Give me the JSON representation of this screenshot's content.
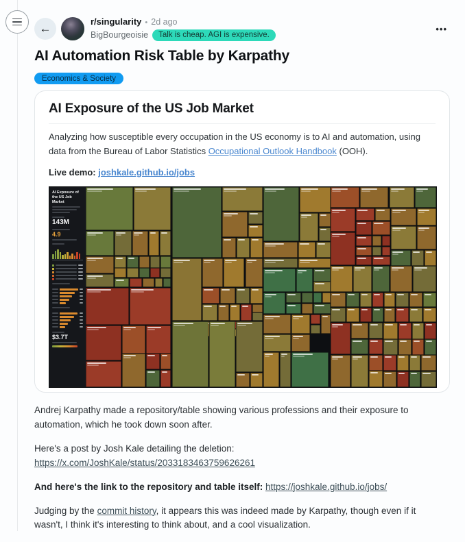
{
  "icons": {
    "back": "←",
    "overflow": "•••"
  },
  "header": {
    "community": "r/singularity",
    "separator": "•",
    "time_ago": "2d ago",
    "author": "BigBourgeoisie",
    "author_flair": "Talk is cheap. AGI is expensive."
  },
  "post": {
    "title": "AI Automation Risk Table by Karpathy",
    "flair": "Economics & Society"
  },
  "card": {
    "title": "AI Exposure of the US Job Market",
    "description_before": "Analyzing how susceptible every occupation in the US economy is to AI and automation, using data from the Bureau of Labor Statistics ",
    "description_link": "Occupational Outlook Handbook",
    "description_after": " (OOH).",
    "live_demo_label": "Live demo:",
    "live_demo_link": "joshkale.github.io/jobs"
  },
  "treemap": {
    "panel": {
      "title": "AI Exposure of the US Job Market",
      "total_jobs_value": "143M",
      "score_value": "4.9",
      "wages_value": "$3.7T"
    },
    "histogram": [
      35,
      62,
      78,
      55,
      30,
      38,
      52,
      28,
      40,
      24,
      55,
      42
    ],
    "histogram_colors": [
      "#7c9a40",
      "#7c9a40",
      "#8fa13d",
      "#9aa83c",
      "#b7af39",
      "#c2b23a",
      "#cfa232",
      "#d98a2e",
      "#d98a2e",
      "#cc6429",
      "#c44227",
      "#c44227"
    ],
    "legend_chips": [
      "#7c9a40",
      "#c2b23a",
      "#d98a2e",
      "#cc6429",
      "#c44227"
    ],
    "hbars1": [
      62,
      48,
      40,
      30,
      20
    ],
    "hbars2": [
      58,
      46,
      36,
      26,
      18
    ],
    "colors": {
      "g1": "#68793b",
      "g2": "#4e663a",
      "g3": "#3f7046",
      "g4": "#6e7438",
      "g5": "#7a7c3a",
      "o1": "#8b7a38",
      "o2": "#746c38",
      "o3": "#8a7434",
      "b1": "#8f682d",
      "b2": "#a07a2e",
      "r1": "#8e3122",
      "r2": "#9b3b28",
      "r3": "#9c4f28"
    },
    "tiles": [
      [
        0,
        0,
        13.5,
        21.7,
        "g1"
      ],
      [
        13.7,
        0,
        10.5,
        21.7,
        "o1"
      ],
      [
        0,
        22,
        8.1,
        12.2,
        "g1"
      ],
      [
        8.3,
        22,
        4.9,
        12.2,
        "o2"
      ],
      [
        13.4,
        22,
        4.4,
        12.2,
        "b1"
      ],
      [
        18,
        22,
        3,
        12.2,
        "b2"
      ],
      [
        21.2,
        22,
        3,
        12.2,
        "o1"
      ],
      [
        0,
        34.5,
        8.1,
        8.8,
        "b1"
      ],
      [
        0,
        43.6,
        8.1,
        6.6,
        "o2"
      ],
      [
        8.3,
        34.5,
        3.3,
        5.8,
        "o1"
      ],
      [
        11.8,
        34.5,
        3.2,
        5.8,
        "g2"
      ],
      [
        15.2,
        34.5,
        3,
        5.8,
        "b1"
      ],
      [
        18.4,
        34.5,
        2.8,
        5.8,
        "o2"
      ],
      [
        21.4,
        34.5,
        2.8,
        5.8,
        "g1"
      ],
      [
        8.3,
        40.6,
        3.3,
        4.8,
        "b2"
      ],
      [
        11.8,
        40.6,
        3.2,
        4.8,
        "o1"
      ],
      [
        15.2,
        40.6,
        3,
        4.8,
        "g2"
      ],
      [
        18.4,
        40.6,
        2.8,
        4.8,
        "r1"
      ],
      [
        21.4,
        40.6,
        2.8,
        4.8,
        "o2"
      ],
      [
        8.3,
        45.7,
        4,
        4.5,
        "g1"
      ],
      [
        12.5,
        45.7,
        3.6,
        4.5,
        "r2"
      ],
      [
        16.3,
        45.7,
        3.2,
        4.5,
        "b1"
      ],
      [
        19.7,
        45.7,
        2.2,
        4.5,
        "o1"
      ],
      [
        22.1,
        45.7,
        2.1,
        4.5,
        "g2"
      ],
      [
        0,
        50.5,
        12.4,
        18.5,
        "r1"
      ],
      [
        12.6,
        50.5,
        11.6,
        18.5,
        "r2"
      ],
      [
        0,
        69.3,
        10.1,
        17.4,
        "r1"
      ],
      [
        0,
        87,
        10.1,
        13,
        "r2"
      ],
      [
        10.3,
        69.3,
        6.7,
        13.8,
        "r3"
      ],
      [
        17.2,
        69.3,
        7,
        13.8,
        "r2"
      ],
      [
        10.3,
        83.4,
        6.7,
        16.6,
        "b1"
      ],
      [
        17.2,
        83.4,
        4,
        7.8,
        "r1"
      ],
      [
        21.4,
        83.4,
        2.8,
        7.8,
        "r3"
      ],
      [
        17.2,
        91.5,
        4,
        8.5,
        "g2"
      ],
      [
        21.4,
        91.5,
        2.8,
        8.5,
        "r2"
      ],
      [
        24.6,
        0,
        14.2,
        35.2,
        "g2"
      ],
      [
        39,
        0,
        11.5,
        11.9,
        "o1"
      ],
      [
        39,
        12.2,
        7.2,
        13,
        "b1"
      ],
      [
        46.4,
        12.2,
        4.1,
        6.3,
        "o2"
      ],
      [
        46.4,
        18.7,
        4.1,
        6.5,
        "b2"
      ],
      [
        39,
        25.5,
        3.9,
        9.7,
        "b1"
      ],
      [
        43.1,
        25.5,
        3.6,
        9.7,
        "o1"
      ],
      [
        46.9,
        25.5,
        3.6,
        9.7,
        "b2"
      ],
      [
        24.6,
        35.5,
        8.5,
        31.2,
        "o3"
      ],
      [
        33.3,
        35.5,
        5.8,
        14.7,
        "b1"
      ],
      [
        39.3,
        35.5,
        6,
        14.7,
        "b2"
      ],
      [
        45.5,
        35.5,
        5,
        14.7,
        "b1"
      ],
      [
        33.3,
        50.5,
        4.8,
        7.8,
        "r3"
      ],
      [
        38.3,
        50.5,
        4.4,
        7.8,
        "b1"
      ],
      [
        42.9,
        50.5,
        3.8,
        7.8,
        "o2"
      ],
      [
        46.9,
        50.5,
        3.6,
        7.8,
        "b2"
      ],
      [
        33.3,
        58.6,
        4.2,
        8.2,
        "o1"
      ],
      [
        37.7,
        58.6,
        3.2,
        8.2,
        "b1"
      ],
      [
        41.1,
        58.6,
        3,
        8.2,
        "b2"
      ],
      [
        44.3,
        58.6,
        3,
        8.2,
        "r2"
      ],
      [
        47.5,
        58.6,
        3,
        4,
        "b1"
      ],
      [
        47.5,
        62.8,
        3,
        4,
        "o2"
      ],
      [
        33.3,
        67.1,
        4.2,
        7.6,
        "b2"
      ],
      [
        37.7,
        67.1,
        3.7,
        7.6,
        "b1"
      ],
      [
        41.6,
        67.1,
        3.1,
        3.7,
        "r1"
      ],
      [
        41.6,
        71,
        3.1,
        3.7,
        "o1"
      ],
      [
        44.9,
        67.1,
        2.7,
        7.6,
        "b2"
      ],
      [
        47.8,
        67.1,
        2.7,
        7.6,
        "b1"
      ],
      [
        24.6,
        67.1,
        10.5,
        32.9,
        "g4"
      ],
      [
        35.3,
        67.1,
        7.4,
        32.9,
        "g5"
      ],
      [
        42.9,
        67.1,
        7.6,
        25.5,
        "o2"
      ],
      [
        42.9,
        92.9,
        3.8,
        7.1,
        "b1"
      ],
      [
        46.9,
        92.9,
        3.6,
        7.1,
        "b2"
      ],
      [
        50.7,
        0,
        10.2,
        27.2,
        "g2"
      ],
      [
        61.1,
        0,
        8.7,
        12.6,
        "b2"
      ],
      [
        61.1,
        12.9,
        5.2,
        14.3,
        "o1"
      ],
      [
        66.5,
        12.9,
        3.3,
        6.9,
        "b1"
      ],
      [
        66.5,
        20.1,
        3.3,
        7.1,
        "o2"
      ],
      [
        50.7,
        27.5,
        9.8,
        7.7,
        "b1"
      ],
      [
        60.7,
        27.5,
        4.9,
        7.7,
        "b2"
      ],
      [
        65.8,
        27.5,
        4,
        7.7,
        "o1"
      ],
      [
        50.7,
        35.5,
        9.8,
        5,
        "o2"
      ],
      [
        60.7,
        35.5,
        9.1,
        5,
        "b2"
      ],
      [
        50.7,
        40.8,
        9.1,
        11.7,
        "g3"
      ],
      [
        60,
        40.8,
        4.8,
        11.7,
        "g3"
      ],
      [
        50.7,
        52.8,
        6.2,
        10.6,
        "g3"
      ],
      [
        57.1,
        52.8,
        4.4,
        5.2,
        "g2"
      ],
      [
        57.1,
        58.2,
        4.4,
        5.2,
        "g3"
      ],
      [
        61.7,
        52.8,
        3.1,
        5.2,
        "g2"
      ],
      [
        61.7,
        58.2,
        3.1,
        5.2,
        "b1"
      ],
      [
        65,
        40.8,
        4.8,
        6.4,
        "g2"
      ],
      [
        65,
        47.4,
        4.8,
        5.1,
        "o1"
      ],
      [
        65,
        52.8,
        2.3,
        5.2,
        "g3"
      ],
      [
        67.5,
        52.8,
        2.3,
        5.2,
        "b2"
      ],
      [
        65,
        58.2,
        4.8,
        5.2,
        "g2"
      ],
      [
        50.7,
        63.7,
        7.8,
        9.7,
        "b1"
      ],
      [
        58.7,
        63.7,
        5.3,
        9.7,
        "b2"
      ],
      [
        64.2,
        63.7,
        2.8,
        4.8,
        "r2"
      ],
      [
        64.2,
        68.7,
        2.8,
        4.7,
        "o2"
      ],
      [
        67.2,
        63.7,
        2.6,
        9.7,
        "b1"
      ],
      [
        50.7,
        73.7,
        7.8,
        8.6,
        "o1"
      ],
      [
        58.7,
        73.7,
        5.3,
        8.6,
        "b1"
      ],
      [
        50.7,
        82.6,
        4.4,
        17.4,
        "b2"
      ],
      [
        55.3,
        82.6,
        3.2,
        17.4,
        "o2"
      ],
      [
        58.7,
        82.6,
        10.5,
        17.4,
        "g3"
      ],
      [
        69.8,
        0,
        8.2,
        10.3,
        "r3"
      ],
      [
        78.2,
        0,
        8.2,
        10.3,
        "b1"
      ],
      [
        86.6,
        0,
        7.2,
        10.3,
        "o1"
      ],
      [
        94,
        0,
        6,
        10.3,
        "g2"
      ],
      [
        69.8,
        10.6,
        7.2,
        11.7,
        "r2"
      ],
      [
        69.8,
        22.6,
        7.2,
        16.6,
        "r1"
      ],
      [
        77.2,
        10.6,
        5.2,
        6.3,
        "r2"
      ],
      [
        82.6,
        10.6,
        4.2,
        6.3,
        "b1"
      ],
      [
        77.2,
        17.2,
        4.4,
        6.7,
        "r1"
      ],
      [
        81.8,
        17.2,
        5,
        6.7,
        "r3"
      ],
      [
        77.2,
        24.2,
        4.4,
        5.2,
        "r2"
      ],
      [
        81.8,
        24.2,
        2.6,
        5.2,
        "b1"
      ],
      [
        84.6,
        24.2,
        2.2,
        5.2,
        "r1"
      ],
      [
        77.2,
        29.7,
        4.4,
        4.7,
        "r3"
      ],
      [
        81.8,
        29.7,
        2.6,
        4.7,
        "o2"
      ],
      [
        84.6,
        29.7,
        2.2,
        4.7,
        "r2"
      ],
      [
        77.2,
        34.7,
        4.4,
        4.5,
        "r1"
      ],
      [
        81.8,
        34.7,
        5,
        4.5,
        "r2"
      ],
      [
        87,
        10.6,
        7.4,
        8.7,
        "b1"
      ],
      [
        94.6,
        10.6,
        5.4,
        8.7,
        "b2"
      ],
      [
        87,
        19.6,
        7.4,
        11.7,
        "o1"
      ],
      [
        94.6,
        19.6,
        5.4,
        11.7,
        "b1"
      ],
      [
        87,
        31.6,
        5.8,
        7.8,
        "g2"
      ],
      [
        93,
        31.6,
        3.4,
        7.8,
        "o2"
      ],
      [
        96.6,
        31.6,
        3.4,
        7.8,
        "b2"
      ],
      [
        69.8,
        39.5,
        6.3,
        13,
        "b2"
      ],
      [
        76.3,
        39.5,
        5.3,
        13,
        "o1"
      ],
      [
        81.8,
        39.5,
        4.8,
        13,
        "g2"
      ],
      [
        86.8,
        39.5,
        6.4,
        13,
        "b1"
      ],
      [
        93.4,
        39.5,
        6.6,
        13,
        "o2"
      ],
      [
        69.8,
        52.8,
        4.3,
        7.3,
        "b1"
      ],
      [
        74.3,
        52.8,
        3.8,
        7.3,
        "g2"
      ],
      [
        78.3,
        52.8,
        3.3,
        7.3,
        "o1"
      ],
      [
        81.8,
        52.8,
        3.2,
        7.3,
        "r2"
      ],
      [
        85.2,
        52.8,
        3.1,
        7.3,
        "b2"
      ],
      [
        88.5,
        52.8,
        3.6,
        7.3,
        "o2"
      ],
      [
        92.3,
        52.8,
        3.7,
        7.3,
        "b1"
      ],
      [
        96.2,
        52.8,
        3.8,
        7.3,
        "g1"
      ],
      [
        69.8,
        60.4,
        4.3,
        7.2,
        "o2"
      ],
      [
        74.3,
        60.4,
        3.8,
        7.2,
        "b2"
      ],
      [
        78.3,
        60.4,
        3.3,
        7.2,
        "r1"
      ],
      [
        81.8,
        60.4,
        3.2,
        7.2,
        "g2"
      ],
      [
        85.2,
        60.4,
        3.1,
        7.2,
        "b1"
      ],
      [
        88.5,
        60.4,
        3.6,
        7.2,
        "r2"
      ],
      [
        92.3,
        60.4,
        3.7,
        7.2,
        "o1"
      ],
      [
        96.2,
        60.4,
        3.8,
        7.2,
        "b2"
      ],
      [
        69.8,
        67.9,
        5.8,
        15.6,
        "r1"
      ],
      [
        75.8,
        67.9,
        4.8,
        7.7,
        "b1"
      ],
      [
        80.8,
        67.9,
        3.9,
        7.7,
        "o2"
      ],
      [
        75.8,
        75.9,
        4.8,
        7.6,
        "g2"
      ],
      [
        80.8,
        75.9,
        3.9,
        7.6,
        "r2"
      ],
      [
        69.8,
        83.8,
        5.8,
        16.2,
        "b1"
      ],
      [
        75.8,
        83.8,
        4.8,
        16.2,
        "o1"
      ],
      [
        80.8,
        83.8,
        3.9,
        7.9,
        "r3"
      ],
      [
        80.8,
        91.9,
        3.9,
        8.1,
        "b2"
      ],
      [
        84.9,
        67.9,
        4.2,
        8,
        "b2"
      ],
      [
        89.3,
        67.9,
        3.6,
        8,
        "r2"
      ],
      [
        93.1,
        67.9,
        3.4,
        8,
        "o1"
      ],
      [
        96.7,
        67.9,
        3.3,
        8,
        "r1"
      ],
      [
        84.9,
        76.1,
        4.2,
        7.7,
        "o2"
      ],
      [
        89.3,
        76.1,
        3.6,
        7.7,
        "b1"
      ],
      [
        93.1,
        76.1,
        3.4,
        7.7,
        "r3"
      ],
      [
        96.7,
        76.1,
        3.3,
        7.7,
        "g2"
      ],
      [
        84.9,
        84,
        3.7,
        7.9,
        "r2"
      ],
      [
        88.8,
        84,
        3.3,
        7.9,
        "b2"
      ],
      [
        92.3,
        84,
        3.2,
        7.9,
        "o1"
      ],
      [
        95.7,
        84,
        4.3,
        7.9,
        "b1"
      ],
      [
        84.9,
        92.1,
        3.7,
        7.9,
        "b1"
      ],
      [
        88.8,
        92.1,
        3.3,
        7.9,
        "r1"
      ],
      [
        92.3,
        92.1,
        3.2,
        7.9,
        "g2"
      ],
      [
        95.7,
        92.1,
        4.3,
        7.9,
        "o2"
      ]
    ]
  },
  "body": {
    "p1": "Andrej Karpathy made a repository/table showing various professions and their exposure to automation, which he took down soon after.",
    "p2": "Here's a post by Josh Kale detailing the deletion:",
    "p2_link": "https://x.com/JoshKale/status/2033183463759626261",
    "p3_bold": "And here's the link to the repository and table itself: ",
    "p3_link": "https://joshkale.github.io/jobs/",
    "p4_before": "Judging by the ",
    "p4_link": "commit history",
    "p4_after": ", it appears this was indeed made by Karpathy, though even if it wasn't, I think it's interesting to think about, and a cool visualization."
  }
}
